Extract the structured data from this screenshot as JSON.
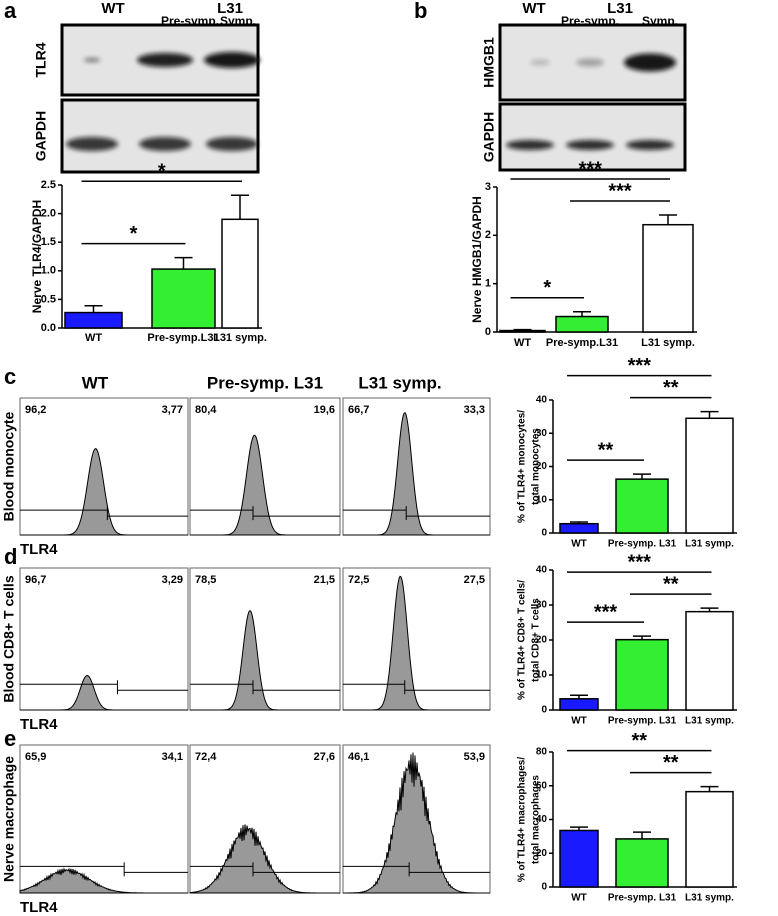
{
  "panel_letters": [
    "a",
    "b",
    "c",
    "d",
    "e"
  ],
  "blots": [
    {
      "lanes_top": [
        "WT",
        "L31"
      ],
      "lanes_bottom": [
        "Pre-symp.",
        "Symp."
      ],
      "rows": [
        "TLR4",
        "GAPDH"
      ]
    },
    {
      "lanes_top": [
        "WT",
        "L31"
      ],
      "lanes_bottom": [
        "Pre-symp.",
        "Symp."
      ],
      "rows": [
        "HMGB1",
        "GAPDH"
      ]
    }
  ],
  "flow": {
    "columns": [
      "WT",
      "Pre-symp. L31",
      "L31 symp."
    ],
    "rows": [
      {
        "label": "Blood monocyte",
        "x_label": "TLR4",
        "gates": [
          [
            "96,2",
            "3,77"
          ],
          [
            "80,4",
            "19,6"
          ],
          [
            "66,7",
            "33,3"
          ]
        ]
      },
      {
        "label": "Blood CD8+ T cells",
        "x_label": "TLR4",
        "gates": [
          [
            "96,7",
            "3,29"
          ],
          [
            "78,5",
            "21,5"
          ],
          [
            "72,5",
            "27,5"
          ]
        ]
      },
      {
        "label": "Nerve macrophage",
        "x_label": "TLR4",
        "gates": [
          [
            "65,9",
            "34,1"
          ],
          [
            "72,4",
            "27,6"
          ],
          [
            "46,1",
            "53,9"
          ]
        ]
      }
    ]
  },
  "chart_data": [
    {
      "type": "bar",
      "ylabel": [
        "Nerve TLR4/GAPDH"
      ],
      "categories": [
        "WT",
        "Pre-symp.L31",
        "L31 symp."
      ],
      "values": [
        0.27,
        1.03,
        1.9
      ],
      "errors": [
        0.12,
        0.2,
        0.42
      ],
      "colors": [
        "#1a1aff",
        "#33ee33",
        "#ffffff"
      ],
      "ylim": [
        0,
        2.5
      ],
      "yticks": [
        {
          "value": 0,
          "label": "0.0"
        },
        0.5,
        {
          "value": 1,
          "label": "1.0"
        },
        1.5,
        {
          "value": 2,
          "label": "2.0"
        },
        2.5
      ],
      "significance": [
        {
          "groups": [
            "WT",
            "Pre-symp.L31"
          ],
          "label": "*"
        },
        {
          "groups": [
            "WT",
            "L31 symp."
          ],
          "label": "*"
        }
      ]
    },
    {
      "type": "bar",
      "ylabel": [
        "Nerve HMGB1/GAPDH"
      ],
      "categories": [
        "WT",
        "Pre-symp.L31",
        "L31 symp."
      ],
      "values": [
        0.03,
        0.32,
        2.22
      ],
      "errors": [
        0.02,
        0.1,
        0.2
      ],
      "colors": [
        "#1a1aff",
        "#33ee33",
        "#ffffff"
      ],
      "ylim": [
        0,
        3
      ],
      "yticks": [
        0,
        1,
        2,
        3
      ],
      "significance": [
        {
          "groups": [
            "WT",
            "Pre-symp.L31"
          ],
          "label": "*"
        },
        {
          "groups": [
            "Pre-symp.L31",
            "L31 symp."
          ],
          "label": "***"
        },
        {
          "groups": [
            "WT",
            "L31 symp."
          ],
          "label": "***"
        }
      ]
    },
    {
      "type": "bar",
      "ylabel": [
        "% of TLR4+ monocytes/",
        "total monocytes"
      ],
      "categories": [
        "WT",
        "Pre-symp. L31",
        "L31 symp."
      ],
      "values": [
        2.8,
        16.2,
        34.5
      ],
      "errors": [
        0.5,
        1.5,
        2.0
      ],
      "colors": [
        "#1a1aff",
        "#33ee33",
        "#ffffff"
      ],
      "ylim": [
        0,
        40
      ],
      "yticks": [
        0,
        10,
        20,
        30,
        40
      ],
      "significance": [
        {
          "groups": [
            "WT",
            "Pre-symp. L31"
          ],
          "label": "**"
        },
        {
          "groups": [
            "Pre-symp. L31",
            "L31 symp."
          ],
          "label": "**"
        },
        {
          "groups": [
            "WT",
            "L31 symp."
          ],
          "label": "***"
        }
      ]
    },
    {
      "type": "bar",
      "ylabel": [
        "% of TLR4+ CD8+ T cells/",
        "total CD8+ T cells"
      ],
      "categories": [
        "WT",
        "Pre-symp. L31",
        "L31 symp."
      ],
      "values": [
        3.2,
        20.1,
        28.1
      ],
      "errors": [
        1.0,
        1.0,
        1.0
      ],
      "colors": [
        "#1a1aff",
        "#33ee33",
        "#ffffff"
      ],
      "ylim": [
        0,
        40
      ],
      "yticks": [
        0,
        10,
        20,
        30,
        40
      ],
      "significance": [
        {
          "groups": [
            "WT",
            "Pre-symp. L31"
          ],
          "label": "***"
        },
        {
          "groups": [
            "Pre-symp. L31",
            "L31 symp."
          ],
          "label": "**"
        },
        {
          "groups": [
            "WT",
            "L31 symp."
          ],
          "label": "***"
        }
      ]
    },
    {
      "type": "bar",
      "ylabel": [
        "% of TLR4+ macrophages/",
        "total macrophages"
      ],
      "categories": [
        "WT",
        "Pre-symp. L31",
        "L31 symp."
      ],
      "values": [
        33.5,
        28.5,
        56.5
      ],
      "errors": [
        2.0,
        4.0,
        3.0
      ],
      "colors": [
        "#1a1aff",
        "#33ee33",
        "#ffffff"
      ],
      "ylim": [
        0,
        80
      ],
      "yticks": [
        0,
        20,
        40,
        60,
        80
      ],
      "significance": [
        {
          "groups": [
            "Pre-symp. L31",
            "L31 symp."
          ],
          "label": "**"
        },
        {
          "groups": [
            "WT",
            "L31 symp."
          ],
          "label": "**"
        }
      ]
    }
  ]
}
